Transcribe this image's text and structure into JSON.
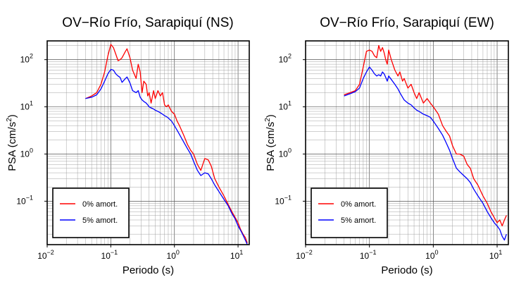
{
  "chart_data": [
    {
      "type": "line",
      "title": "OV−Río Frío, Sarapiquí (NS)",
      "xlabel": "Periodo (s)",
      "ylabel": "PSA (cm/s2)",
      "xscale": "log",
      "yscale": "log",
      "xlim": [
        0.01,
        15
      ],
      "ylim": [
        0.012,
        250
      ],
      "xticks": [
        {
          "base": "10",
          "exp": "−2"
        },
        {
          "base": "10",
          "exp": "−1"
        },
        {
          "base": "10",
          "exp": "0"
        },
        {
          "base": "10",
          "exp": "1"
        }
      ],
      "yticks": [
        {
          "base": "10",
          "exp": "−1"
        },
        {
          "base": "10",
          "exp": "0"
        },
        {
          "base": "10",
          "exp": "1"
        },
        {
          "base": "10",
          "exp": "2"
        }
      ],
      "grid": true,
      "legend_position": "bottom-left",
      "series": [
        {
          "name": "0% amort.",
          "color": "#ff0000",
          "x": [
            0.04,
            0.05,
            0.06,
            0.07,
            0.08,
            0.09,
            0.1,
            0.11,
            0.12,
            0.13,
            0.14,
            0.15,
            0.17,
            0.18,
            0.2,
            0.22,
            0.25,
            0.27,
            0.29,
            0.31,
            0.33,
            0.36,
            0.38,
            0.4,
            0.43,
            0.47,
            0.5,
            0.55,
            0.6,
            0.65,
            0.7,
            0.75,
            0.8,
            0.9,
            1.0,
            1.1,
            1.2,
            1.4,
            1.6,
            1.8,
            2.0,
            2.3,
            2.6,
            3.0,
            3.4,
            3.8,
            4.3,
            5.0,
            6.0,
            7.0,
            8.0,
            9.0,
            10.0,
            11.0,
            12.0,
            13.0,
            14.0
          ],
          "y": [
            15,
            17,
            20,
            30,
            55,
            120,
            210,
            180,
            130,
            95,
            100,
            110,
            150,
            170,
            110,
            60,
            40,
            80,
            55,
            20,
            35,
            30,
            17,
            20,
            12,
            22,
            15,
            22,
            17,
            20,
            11,
            10,
            11,
            8,
            7,
            5,
            4,
            2.5,
            1.6,
            1.2,
            1.0,
            0.6,
            0.45,
            0.8,
            0.75,
            0.55,
            0.3,
            0.2,
            0.13,
            0.085,
            0.06,
            0.045,
            0.035,
            0.025,
            0.02,
            0.017,
            0.013
          ]
        },
        {
          "name": "5% amort.",
          "color": "#0000ff",
          "x": [
            0.04,
            0.05,
            0.06,
            0.07,
            0.08,
            0.09,
            0.1,
            0.11,
            0.12,
            0.13,
            0.14,
            0.15,
            0.17,
            0.18,
            0.2,
            0.22,
            0.25,
            0.27,
            0.29,
            0.31,
            0.33,
            0.36,
            0.38,
            0.4,
            0.43,
            0.47,
            0.5,
            0.55,
            0.6,
            0.65,
            0.7,
            0.75,
            0.8,
            0.9,
            1.0,
            1.1,
            1.2,
            1.4,
            1.6,
            1.8,
            2.0,
            2.3,
            2.6,
            3.0,
            3.4,
            3.8,
            4.3,
            5.0,
            6.0,
            7.0,
            8.0,
            9.0,
            10.0,
            11.0,
            12.0,
            13.0,
            14.0
          ],
          "y": [
            15,
            16,
            18,
            24,
            35,
            50,
            62,
            60,
            50,
            45,
            42,
            33,
            40,
            43,
            32,
            22,
            20,
            22,
            16,
            14,
            13,
            12,
            11,
            10,
            9.5,
            9,
            8.5,
            8,
            7.5,
            7,
            6.5,
            6.2,
            5.8,
            5,
            4,
            3.2,
            2.6,
            1.8,
            1.3,
            1.0,
            0.7,
            0.45,
            0.35,
            0.4,
            0.38,
            0.3,
            0.22,
            0.16,
            0.11,
            0.08,
            0.055,
            0.042,
            0.03,
            0.024,
            0.019,
            0.015,
            0.012
          ]
        }
      ]
    },
    {
      "type": "line",
      "title": "OV−Río Frío, Sarapiquí (EW)",
      "xlabel": "Periodo (s)",
      "ylabel": "PSA (cm/s2)",
      "xscale": "log",
      "yscale": "log",
      "xlim": [
        0.01,
        15
      ],
      "ylim": [
        0.012,
        250
      ],
      "xticks": [
        {
          "base": "10",
          "exp": "−2"
        },
        {
          "base": "10",
          "exp": "−1"
        },
        {
          "base": "10",
          "exp": "0"
        },
        {
          "base": "10",
          "exp": "1"
        }
      ],
      "yticks": [
        {
          "base": "10",
          "exp": "−1"
        },
        {
          "base": "10",
          "exp": "0"
        },
        {
          "base": "10",
          "exp": "1"
        },
        {
          "base": "10",
          "exp": "2"
        }
      ],
      "grid": true,
      "legend_position": "bottom-left",
      "series": [
        {
          "name": "0% amort.",
          "color": "#ff0000",
          "x": [
            0.04,
            0.05,
            0.06,
            0.07,
            0.08,
            0.09,
            0.1,
            0.11,
            0.12,
            0.13,
            0.14,
            0.15,
            0.16,
            0.17,
            0.18,
            0.19,
            0.2,
            0.22,
            0.25,
            0.28,
            0.3,
            0.33,
            0.35,
            0.4,
            0.45,
            0.5,
            0.55,
            0.6,
            0.7,
            0.8,
            0.9,
            1.0,
            1.2,
            1.4,
            1.6,
            1.8,
            2.0,
            2.3,
            2.6,
            3.0,
            3.4,
            3.8,
            4.3,
            5.0,
            6.0,
            7.0,
            8.0,
            9.0,
            10.0,
            11.0,
            12.0,
            13.0,
            14.0
          ],
          "y": [
            18,
            20,
            22,
            30,
            70,
            150,
            160,
            150,
            120,
            110,
            200,
            150,
            180,
            140,
            100,
            80,
            160,
            100,
            60,
            45,
            55,
            35,
            40,
            25,
            30,
            20,
            15,
            20,
            12,
            15,
            12,
            10,
            7,
            4,
            3,
            2.4,
            1.5,
            1.0,
            1.0,
            0.9,
            0.6,
            0.5,
            0.3,
            0.22,
            0.13,
            0.09,
            0.06,
            0.045,
            0.035,
            0.04,
            0.03,
            0.04,
            0.05
          ]
        },
        {
          "name": "5% amort.",
          "color": "#0000ff",
          "x": [
            0.04,
            0.05,
            0.06,
            0.07,
            0.08,
            0.09,
            0.1,
            0.11,
            0.12,
            0.13,
            0.14,
            0.15,
            0.16,
            0.17,
            0.18,
            0.19,
            0.2,
            0.22,
            0.25,
            0.28,
            0.3,
            0.33,
            0.35,
            0.4,
            0.45,
            0.5,
            0.55,
            0.6,
            0.7,
            0.8,
            0.9,
            1.0,
            1.2,
            1.4,
            1.6,
            1.8,
            2.0,
            2.3,
            2.6,
            3.0,
            3.4,
            3.8,
            4.3,
            5.0,
            6.0,
            7.0,
            8.0,
            9.0,
            10.0,
            11.0,
            12.0,
            13.0,
            14.0
          ],
          "y": [
            17,
            19,
            21,
            25,
            40,
            55,
            70,
            60,
            50,
            45,
            48,
            45,
            55,
            50,
            42,
            35,
            45,
            38,
            30,
            24,
            20,
            16,
            14,
            12,
            11,
            9.5,
            8.5,
            8,
            7,
            6.5,
            6,
            5,
            3.5,
            2.5,
            1.7,
            1.2,
            0.8,
            0.5,
            0.42,
            0.35,
            0.3,
            0.25,
            0.18,
            0.13,
            0.09,
            0.06,
            0.045,
            0.035,
            0.03,
            0.025,
            0.018,
            0.015,
            0.02
          ]
        }
      ]
    }
  ]
}
